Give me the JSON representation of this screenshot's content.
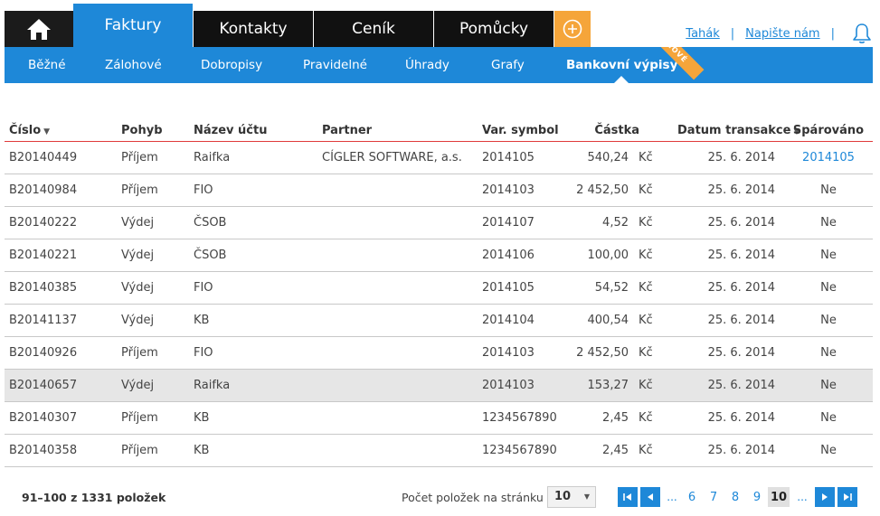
{
  "nav": {
    "tabs": [
      {
        "label": "Faktury",
        "active": true
      },
      {
        "label": "Kontakty",
        "active": false
      },
      {
        "label": "Ceník",
        "active": false
      },
      {
        "label": "Pomůcky",
        "active": false
      }
    ],
    "links": {
      "tahak": "Tahák",
      "separator": "|",
      "napiste": "Napište nám"
    }
  },
  "subnav": {
    "items": [
      {
        "label": "Běžné"
      },
      {
        "label": "Zálohové"
      },
      {
        "label": "Dobropisy"
      },
      {
        "label": "Pravidelné"
      },
      {
        "label": "Úhrady"
      },
      {
        "label": "Grafy"
      },
      {
        "label": "Bankovní výpisy",
        "active": true
      }
    ],
    "badge": "NOVÉ"
  },
  "table": {
    "columns": {
      "cislo": "Číslo",
      "pohyb": "Pohyb",
      "ucet": "Název účtu",
      "partner": "Partner",
      "var": "Var. symbol",
      "castka": "Částka",
      "datum": "Datum transakce",
      "sparovano": "Spárováno"
    },
    "rows": [
      {
        "cislo": "B20140449",
        "pohyb": "Příjem",
        "ucet": "Raifka",
        "partner": "CÍGLER SOFTWARE, a.s.",
        "var": "2014105",
        "castka": "540,24",
        "mena": "Kč",
        "datum": "25. 6. 2014",
        "sparovano": "2014105"
      },
      {
        "cislo": "B20140984",
        "pohyb": "Příjem",
        "ucet": "FIO",
        "partner": "",
        "var": "2014103",
        "castka": "2 452,50",
        "mena": "Kč",
        "datum": "25. 6. 2014",
        "sparovano": "Ne"
      },
      {
        "cislo": "B20140222",
        "pohyb": "Výdej",
        "ucet": "ČSOB",
        "partner": "",
        "var": "2014107",
        "castka": "4,52",
        "mena": "Kč",
        "datum": "25. 6. 2014",
        "sparovano": "Ne"
      },
      {
        "cislo": "B20140221",
        "pohyb": "Výdej",
        "ucet": "ČSOB",
        "partner": "",
        "var": "2014106",
        "castka": "100,00",
        "mena": "Kč",
        "datum": "25. 6. 2014",
        "sparovano": "Ne"
      },
      {
        "cislo": "B20140385",
        "pohyb": "Výdej",
        "ucet": "FIO",
        "partner": "",
        "var": "2014105",
        "castka": "54,52",
        "mena": "Kč",
        "datum": "25. 6. 2014",
        "sparovano": "Ne"
      },
      {
        "cislo": "B20141137",
        "pohyb": "Výdej",
        "ucet": "KB",
        "partner": "",
        "var": "2014104",
        "castka": "400,54",
        "mena": "Kč",
        "datum": "25. 6. 2014",
        "sparovano": "Ne"
      },
      {
        "cislo": "B20140926",
        "pohyb": "Příjem",
        "ucet": "FIO",
        "partner": "",
        "var": "2014103",
        "castka": "2 452,50",
        "mena": "Kč",
        "datum": "25. 6. 2014",
        "sparovano": "Ne"
      },
      {
        "cislo": "B20140657",
        "pohyb": "Výdej",
        "ucet": "Raifka",
        "partner": "",
        "var": "2014103",
        "castka": "153,27",
        "mena": "Kč",
        "datum": "25. 6. 2014",
        "sparovano": "Ne"
      },
      {
        "cislo": "B20140307",
        "pohyb": "Příjem",
        "ucet": "KB",
        "partner": "",
        "var": "1234567890",
        "castka": "2,45",
        "mena": "Kč",
        "datum": "25. 6. 2014",
        "sparovano": "Ne"
      },
      {
        "cislo": "B20140358",
        "pohyb": "Příjem",
        "ucet": "KB",
        "partner": "",
        "var": "1234567890",
        "castka": "2,45",
        "mena": "Kč",
        "datum": "25. 6. 2014",
        "sparovano": "Ne"
      }
    ]
  },
  "footer": {
    "summary": "91–100 z 1331 položek",
    "per_page_label": "Počet položek na stránku",
    "per_page_value": "10",
    "pager": {
      "dots": "...",
      "pages": [
        "6",
        "7",
        "8",
        "9",
        "10"
      ],
      "current": "10"
    }
  },
  "colors": {
    "accent": "#1e88d8",
    "orange": "#f5a53a",
    "dark": "#111111",
    "header_rule": "#e03a3a"
  }
}
